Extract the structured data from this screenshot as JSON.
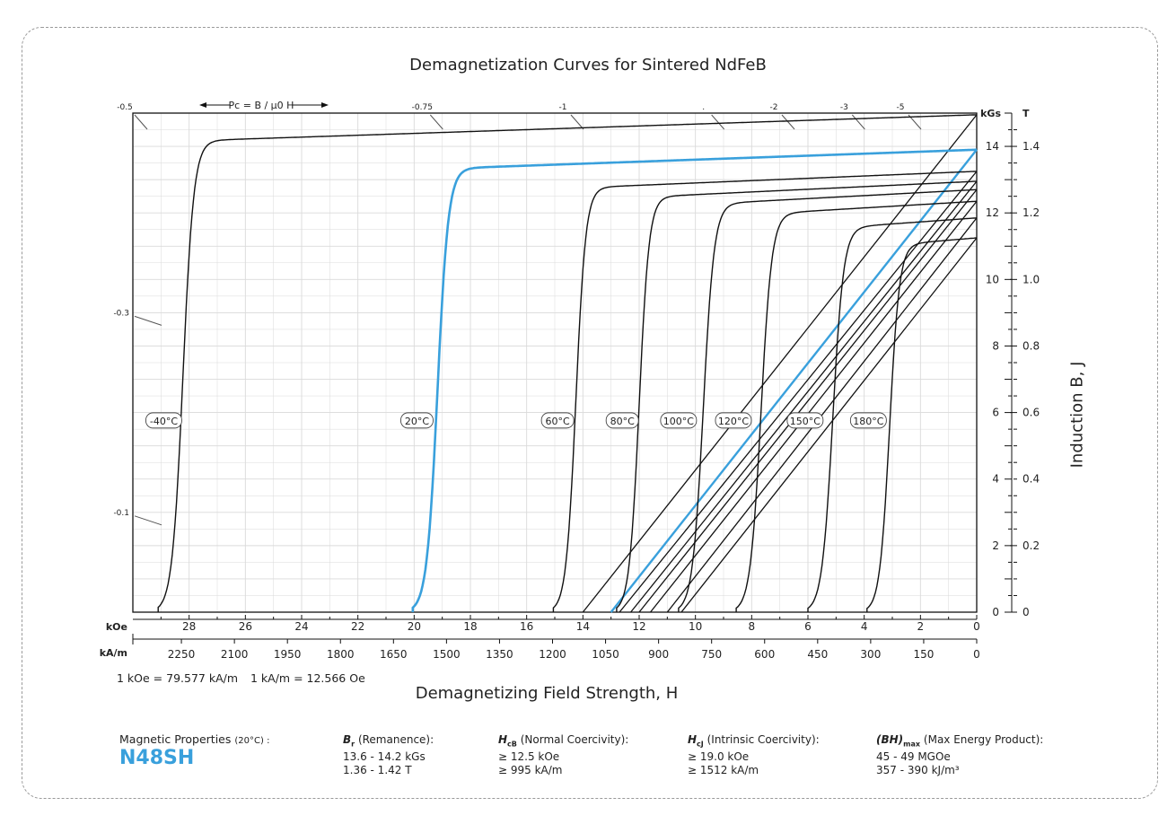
{
  "title": "Demagnetization Curves for Sintered NdFeB",
  "chart_data": {
    "type": "line",
    "title": "Demagnetization Curves for Sintered NdFeB",
    "xlabel": "Demagnetizing Field Strength, H",
    "ylabel": "Induction B, J",
    "x_unit_primary": "kOe",
    "x_unit_secondary": "kA/m",
    "y_unit_left": "kGs",
    "y_unit_right": "T",
    "xlim": [
      30,
      0
    ],
    "ylim": [
      0,
      15
    ],
    "x_ticks_koe": [
      "28",
      "26",
      "24",
      "22",
      "20",
      "18",
      "16",
      "14",
      "12",
      "10",
      "8",
      "6",
      "4",
      "2",
      "0"
    ],
    "x_ticks_kam": [
      "2250",
      "2100",
      "1950",
      "1800",
      "1650",
      "1500",
      "1350",
      "1200",
      "1050",
      "900",
      "750",
      "600",
      "450",
      "300",
      "150",
      "0"
    ],
    "y_ticks_kgs": [
      "0",
      "2",
      "4",
      "6",
      "8",
      "10",
      "12",
      "14"
    ],
    "y_ticks_t": [
      "0",
      "0.2",
      "0.4",
      "0.6",
      "0.8",
      "1.0",
      "1.2",
      "1.4"
    ],
    "pc_label": "Pc = B / μ0 H",
    "pc_marks": [
      {
        "label": "-0.5",
        "h": 30,
        "b": 15
      },
      {
        "label": "-0.75",
        "h": 20,
        "b": 15
      },
      {
        "label": "-1",
        "h": 15,
        "b": 15
      },
      {
        "label": ".",
        "h": 10,
        "b": 15
      },
      {
        "label": "-2",
        "h": 7.5,
        "b": 15
      },
      {
        "label": "-3",
        "h": 5,
        "b": 15
      },
      {
        "label": "-5",
        "h": 3,
        "b": 15
      },
      {
        "label": "-0.3",
        "h": 30,
        "b": 9
      },
      {
        "label": "-0.1",
        "h": 30,
        "b": 3
      }
    ],
    "series": [
      {
        "name": "-40°C",
        "highlight": false,
        "Br": 14.95,
        "Hci": 29.1,
        "slope": 0.028,
        "knee": 0.55,
        "Bd_zero": 14.95
      },
      {
        "name": "20°C",
        "highlight": true,
        "Br": 13.9,
        "Hci": 20.05,
        "slope": 0.03,
        "knee": 0.55,
        "Bd_zero": 13.9
      },
      {
        "name": "60°C",
        "highlight": false,
        "Br": 13.25,
        "Hci": 15.05,
        "slope": 0.035,
        "knee": 0.5,
        "Bd_zero": 13.25
      },
      {
        "name": "80°C",
        "highlight": false,
        "Br": 12.95,
        "Hci": 12.8,
        "slope": 0.04,
        "knee": 0.5,
        "Bd_zero": 12.95
      },
      {
        "name": "100°C",
        "highlight": false,
        "Br": 12.7,
        "Hci": 10.6,
        "slope": 0.045,
        "knee": 0.55,
        "Bd_zero": 12.7
      },
      {
        "name": "120°C",
        "highlight": false,
        "Br": 12.35,
        "Hci": 8.55,
        "slope": 0.05,
        "knee": 0.55,
        "Bd_zero": 12.35
      },
      {
        "name": "150°C",
        "highlight": false,
        "Br": 11.85,
        "Hci": 6.0,
        "slope": 0.06,
        "knee": 0.55,
        "Bd_zero": 11.85
      },
      {
        "name": "180°C",
        "highlight": false,
        "Br": 11.25,
        "Hci": 3.9,
        "slope": 0.07,
        "knee": 0.5,
        "Bd_zero": 11.25
      }
    ],
    "normal_curves": [
      {
        "name": "-40°C",
        "Br": 14.95,
        "H_at_B0": 14.0
      },
      {
        "name": "20°C",
        "Br": 13.9,
        "H_at_B0": 13.0
      },
      {
        "name": "60°C",
        "Br": 13.25,
        "H_at_B0": 12.7
      },
      {
        "name": "80°C",
        "Br": 12.95,
        "H_at_B0": 12.3
      },
      {
        "name": "100°C",
        "Br": 12.7,
        "H_at_B0": 12.0
      },
      {
        "name": "120°C",
        "Br": 12.35,
        "H_at_B0": 11.6
      },
      {
        "name": "150°C",
        "Br": 11.85,
        "H_at_B0": 11.0
      },
      {
        "name": "180°C",
        "Br": 11.25,
        "H_at_B0": 10.5
      }
    ],
    "series_labels": [
      {
        "name": "-40°C",
        "h": 28.9,
        "b": 5.75
      },
      {
        "name": "20°C",
        "h": 19.9,
        "b": 5.75
      },
      {
        "name": "60°C",
        "h": 14.9,
        "b": 5.75
      },
      {
        "name": "80°C",
        "h": 12.6,
        "b": 5.75
      },
      {
        "name": "100°C",
        "h": 10.6,
        "b": 5.75
      },
      {
        "name": "120°C",
        "h": 8.65,
        "b": 5.75
      },
      {
        "name": "150°C",
        "h": 6.1,
        "b": 5.75
      },
      {
        "name": "180°C",
        "h": 3.85,
        "b": 5.75
      }
    ],
    "grid": true
  },
  "conversion": {
    "koe_to_kam": "1 kOe = 79.577 kA/m",
    "kam_to_oe": "1 kA/m = 12.566 Oe"
  },
  "properties": {
    "label": "Magnetic Properties",
    "label_temp": "(20°C) :",
    "grade": "N48SH",
    "remanence": {
      "symbol": "B",
      "sub": "r",
      "name": "(Remanence):",
      "v1": "13.6 - 14.2 kGs",
      "v2": "1.36 - 1.42 T"
    },
    "normal_coercivity": {
      "symbol": "H",
      "sub": "cB",
      "name": "(Normal Coercivity):",
      "v1": "≥ 12.5 kOe",
      "v2": "≥ 995 kA/m"
    },
    "intrinsic_coercivity": {
      "symbol": "H",
      "sub": "cJ",
      "name": "(Intrinsic Coercivity):",
      "v1": "≥ 19.0 kOe",
      "v2": "≥ 1512 kA/m"
    },
    "energy_product": {
      "symbol": "(BH)",
      "sub": "max",
      "name": "(Max Energy Product):",
      "v1": "45 - 49 MGOe",
      "v2": "357 - 390 kJ/m³"
    }
  },
  "colors": {
    "highlight": "#39a0dc",
    "curve": "#111111",
    "grid": "#cfcfcf",
    "grade": "#39a0dc"
  }
}
